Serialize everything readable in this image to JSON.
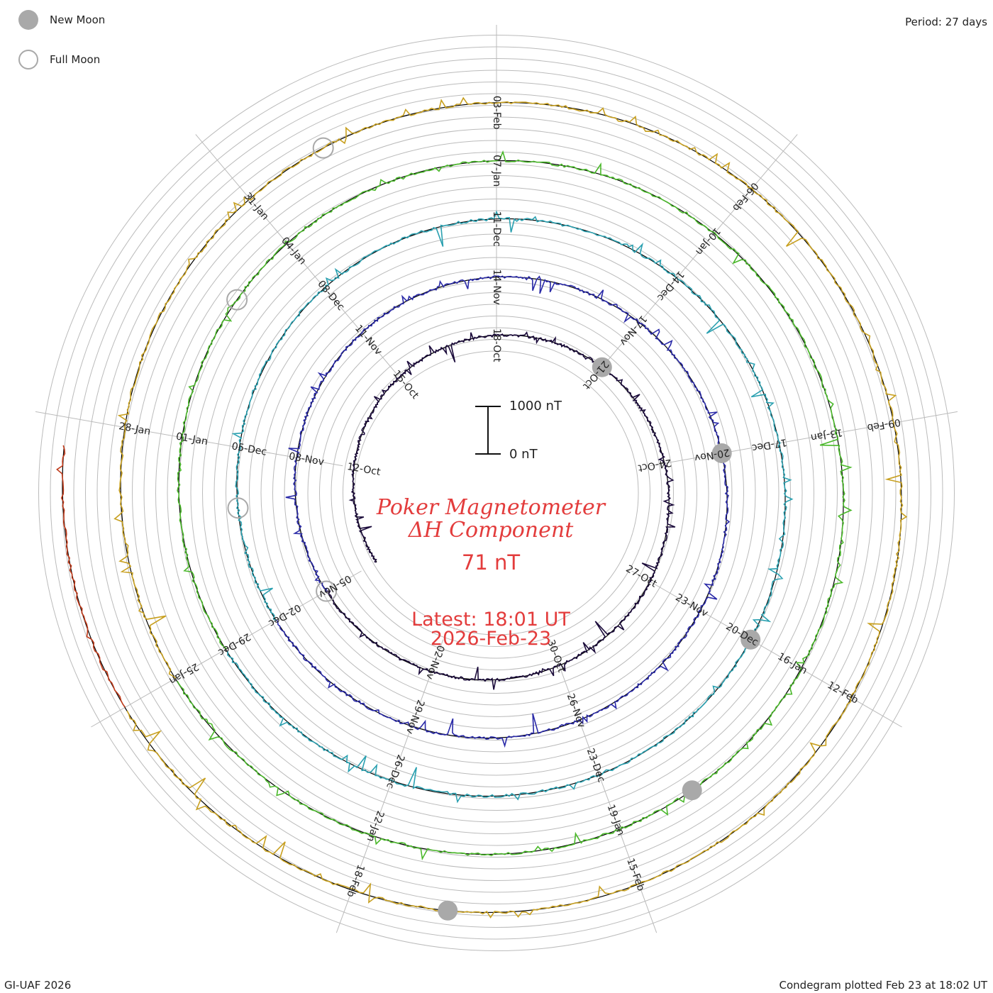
{
  "legend": {
    "new_moon_label": "New Moon",
    "full_moon_label": "Full Moon"
  },
  "period_label": "Period: 27 days",
  "title": {
    "line1": "Poker Magnetometer",
    "line2": "ΔH Component",
    "current_value": "71 nT",
    "latest_line1": "Latest: 18:01 UT",
    "latest_line2": "2026-Feb-23"
  },
  "scale": {
    "top_label": "1000 nT",
    "bottom_label": "0 nT"
  },
  "footer": {
    "left": "GI-UAF 2026",
    "right": "Condegram plotted Feb 23 at 18:02 UT"
  },
  "colors": {
    "title": "#e33c3c",
    "grid": "#bbbbbb",
    "moon": "#a9a9a9",
    "ring_colors": [
      "#1a0a3a",
      "#2a2aa8",
      "#2aa0b0",
      "#4ab82a",
      "#c8a020",
      "#c03a1a"
    ]
  },
  "chart_data": {
    "type": "line",
    "chart_style": "condegram spiral (polar, 27-day period, clockwise)",
    "period_days": 27,
    "units": "nT",
    "latest_value": 71,
    "rings": [
      {
        "start": "2025-10-09",
        "color": "#1a0a3a",
        "ticks": [
          "12-Oct",
          "15-Oct",
          "18-Oct",
          "21-Oct",
          "24-Oct",
          "27-Oct",
          "30-Oct",
          "02-Nov",
          "05-Nov"
        ]
      },
      {
        "start": "2025-11-05",
        "color": "#2a2aa8",
        "ticks": [
          "08-Nov",
          "11-Nov",
          "14-Nov",
          "17-Nov",
          "20-Nov",
          "23-Nov",
          "26-Nov",
          "29-Nov",
          "02-Dec"
        ]
      },
      {
        "start": "2025-12-02",
        "color": "#2aa0b0",
        "ticks": [
          "05-Dec",
          "08-Dec",
          "11-Dec",
          "14-Dec",
          "17-Dec",
          "20-Dec",
          "23-Dec",
          "26-Dec",
          "29-Dec"
        ]
      },
      {
        "start": "2025-12-29",
        "color": "#4ab82a",
        "ticks": [
          "01-Jan",
          "04-Jan",
          "07-Jan",
          "10-Jan",
          "13-Jan",
          "16-Jan",
          "19-Jan",
          "22-Jan",
          "25-Jan"
        ]
      },
      {
        "start": "2026-01-25",
        "color": "#c8a020",
        "ticks": [
          "28-Jan",
          "31-Jan",
          "03-Feb",
          "06-Feb",
          "09-Feb",
          "12-Feb",
          "15-Feb",
          "18-Feb"
        ]
      },
      {
        "start": "2026-02-21",
        "color": "#c03a1a",
        "ticks": []
      }
    ],
    "new_moons": [
      "2025-10-21",
      "2025-11-20",
      "2025-12-20",
      "2026-01-18",
      "2026-02-17"
    ],
    "full_moons": [
      "2025-11-05",
      "2025-12-04",
      "2026-01-03",
      "2026-02-01"
    ]
  }
}
